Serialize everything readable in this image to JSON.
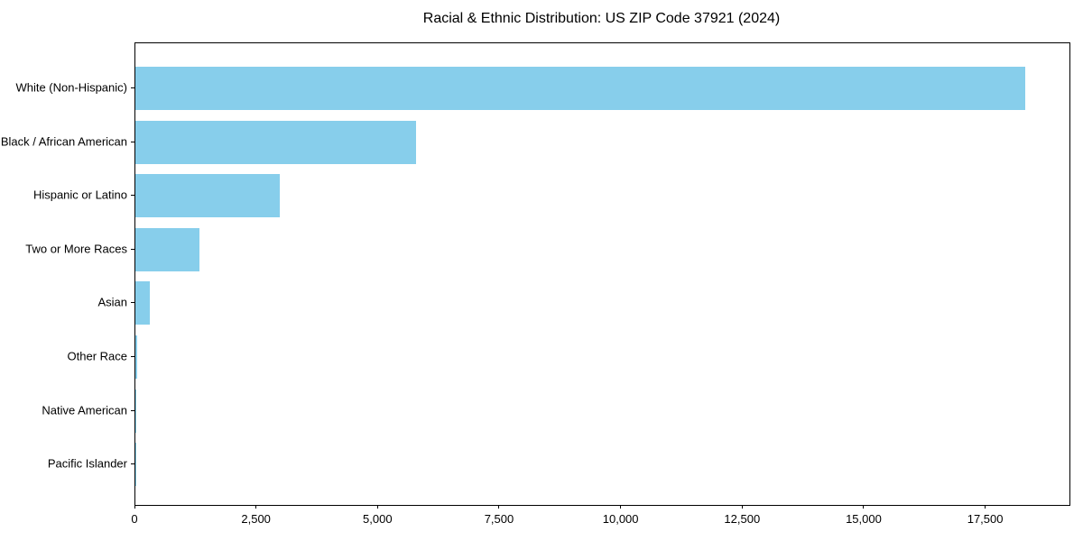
{
  "chart_data": {
    "type": "bar",
    "orientation": "horizontal",
    "title": "Racial & Ethnic Distribution: US ZIP Code 37921 (2024)",
    "categories": [
      "White (Non-Hispanic)",
      "Black / African American",
      "Hispanic or Latino",
      "Two or More Races",
      "Asian",
      "Other Race",
      "Native American",
      "Pacific Islander"
    ],
    "values": [
      18300,
      5780,
      2970,
      1320,
      295,
      40,
      15,
      5
    ],
    "xlabel": "",
    "ylabel": "",
    "xlim": [
      0,
      19215
    ],
    "xticks": [
      0,
      2500,
      5000,
      7500,
      10000,
      12500,
      15000,
      17500
    ],
    "xtick_labels": [
      "0",
      "2,500",
      "5,000",
      "7,500",
      "10,000",
      "12,500",
      "15,000",
      "17,500"
    ],
    "bar_color": "#87CEEB",
    "grid": false,
    "legend": null
  }
}
